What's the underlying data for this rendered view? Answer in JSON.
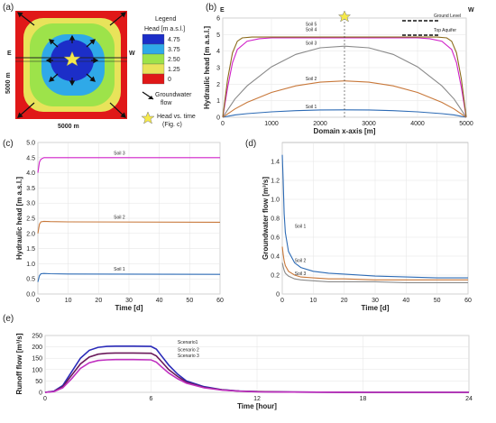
{
  "panels": {
    "a": "(a)",
    "b": "(b)",
    "c": "(c)",
    "d": "(d)",
    "e": "(e)"
  },
  "map": {
    "east": "E",
    "west": "W",
    "side_label_left": "5000 m",
    "side_label_bottom": "5000 m",
    "legend_title": "Legend",
    "head_title": "Head [m a.s.l.]",
    "head_levels": [
      "4.75",
      "3.75",
      "2.50",
      "1.25",
      "0"
    ],
    "head_colors": [
      "#1c2ec8",
      "#2fa9e8",
      "#9de34a",
      "#e8e35a",
      "#e01818"
    ],
    "gw_flow_label_1": "Groundwater",
    "gw_flow_label_2": "flow",
    "star_label_1": "Head vs. time",
    "star_label_2": "(Fig. c)"
  },
  "chart_data": [
    {
      "id": "b",
      "type": "line",
      "xlabel": "Domain x-axis [m]",
      "ylabel": "Hydraulic head [m a.s.l.]",
      "xlim": [
        0,
        5000
      ],
      "ylim": [
        0,
        6
      ],
      "xticks": [
        "0",
        "1000",
        "2000",
        "3000",
        "4000",
        "5000"
      ],
      "yticks": [
        "0",
        "1",
        "2",
        "3",
        "4",
        "5",
        "6"
      ],
      "corner_left": "E",
      "corner_right": "W",
      "ground_level_label": "Ground Level",
      "top_aquifer_label": "Top Aquifer",
      "ground_level": 5.6,
      "top_aquifer": 4.95,
      "series": [
        {
          "name": "Soil 1",
          "color": "#2d6bb5",
          "x": [
            0,
            250,
            500,
            1000,
            1500,
            2000,
            2500,
            3000,
            3500,
            4000,
            4500,
            4750,
            5000
          ],
          "values": [
            0,
            0.14,
            0.22,
            0.33,
            0.4,
            0.44,
            0.45,
            0.44,
            0.4,
            0.33,
            0.22,
            0.14,
            0
          ]
        },
        {
          "name": "Soil 2",
          "color": "#c8783a",
          "x": [
            0,
            250,
            500,
            1000,
            1500,
            2000,
            2500,
            3000,
            3500,
            4000,
            4500,
            4750,
            5000
          ],
          "values": [
            0,
            0.5,
            0.9,
            1.5,
            1.9,
            2.12,
            2.2,
            2.12,
            1.9,
            1.5,
            0.9,
            0.5,
            0
          ]
        },
        {
          "name": "Soil 3",
          "color": "#8a8a8a",
          "x": [
            0,
            250,
            500,
            1000,
            1500,
            2000,
            2500,
            3000,
            3500,
            4000,
            4500,
            4750,
            5000
          ],
          "values": [
            0,
            1.1,
            1.9,
            3.05,
            3.8,
            4.2,
            4.3,
            4.2,
            3.8,
            3.05,
            1.9,
            1.1,
            0
          ]
        },
        {
          "name": "Soil 4",
          "color": "#d020c8",
          "x": [
            0,
            100,
            200,
            300,
            500,
            750,
            1000,
            1500,
            2000,
            2500,
            3000,
            3500,
            4000,
            4250,
            4500,
            4700,
            4800,
            4900,
            5000
          ],
          "values": [
            0,
            1.8,
            3.3,
            4.1,
            4.6,
            4.75,
            4.8,
            4.8,
            4.8,
            4.8,
            4.8,
            4.8,
            4.8,
            4.75,
            4.6,
            4.1,
            3.3,
            1.8,
            0
          ]
        },
        {
          "name": "Soil 5",
          "color": "#8b6a1a",
          "x": [
            0,
            100,
            200,
            300,
            400,
            600,
            1000,
            1500,
            2000,
            2500,
            3000,
            3500,
            4000,
            4400,
            4600,
            4700,
            4800,
            4900,
            5000
          ],
          "values": [
            0,
            2.3,
            3.9,
            4.6,
            4.8,
            4.85,
            4.85,
            4.85,
            4.85,
            4.85,
            4.85,
            4.85,
            4.85,
            4.85,
            4.8,
            4.6,
            3.9,
            2.3,
            0
          ]
        }
      ],
      "marker_x": 2500
    },
    {
      "id": "c",
      "type": "line",
      "xlabel": "Time [d]",
      "ylabel": "Hydraulic head [m a.s.l.]",
      "xlim": [
        0,
        60
      ],
      "ylim": [
        0,
        5
      ],
      "xticks": [
        "0",
        "10",
        "20",
        "30",
        "40",
        "50",
        "60"
      ],
      "yticks": [
        "0.0",
        "0.5",
        "1.0",
        "1.5",
        "2.0",
        "2.5",
        "3.0",
        "3.5",
        "4.0",
        "4.5",
        "5.0"
      ],
      "series": [
        {
          "name": "Soil 1",
          "color": "#2d6bb5",
          "x": [
            0,
            0.5,
            1,
            2,
            4,
            10,
            60
          ],
          "values": [
            0.4,
            0.6,
            0.67,
            0.68,
            0.67,
            0.66,
            0.65
          ]
        },
        {
          "name": "Soil 2",
          "color": "#c8783a",
          "x": [
            0,
            0.5,
            1,
            2,
            4,
            10,
            60
          ],
          "values": [
            2.0,
            2.3,
            2.38,
            2.4,
            2.39,
            2.38,
            2.37
          ]
        },
        {
          "name": "Soil 3",
          "color": "#d020c8",
          "x": [
            0,
            0.5,
            1,
            2,
            3,
            10,
            60
          ],
          "values": [
            4.0,
            4.35,
            4.45,
            4.5,
            4.5,
            4.5,
            4.5
          ]
        }
      ]
    },
    {
      "id": "d",
      "type": "line",
      "xlabel": "Time [d]",
      "ylabel": "Groundwater flow [m³/s]",
      "xlim": [
        0,
        60
      ],
      "ylim": [
        0,
        1.6
      ],
      "xticks": [
        "0",
        "10",
        "20",
        "30",
        "40",
        "50",
        "60"
      ],
      "yticks": [
        "0",
        "0.2",
        "0.4",
        "0.6",
        "0.8",
        "1.0",
        "1.2",
        "1.4"
      ],
      "series": [
        {
          "name": "Soil 1",
          "color": "#2d6bb5",
          "x": [
            0,
            0.3,
            0.6,
            1,
            2,
            4,
            6,
            10,
            15,
            20,
            30,
            40,
            50,
            60
          ],
          "values": [
            1.47,
            1.2,
            0.85,
            0.65,
            0.45,
            0.33,
            0.28,
            0.24,
            0.22,
            0.21,
            0.19,
            0.18,
            0.17,
            0.17
          ]
        },
        {
          "name": "Soil 2",
          "color": "#c8783a",
          "x": [
            0,
            0.3,
            0.6,
            1,
            2,
            4,
            6,
            10,
            15,
            20,
            30,
            40,
            50,
            60
          ],
          "values": [
            0.5,
            0.42,
            0.35,
            0.3,
            0.24,
            0.2,
            0.18,
            0.17,
            0.16,
            0.16,
            0.15,
            0.15,
            0.15,
            0.15
          ]
        },
        {
          "name": "Soil 3",
          "color": "#8a8a8a",
          "x": [
            0,
            0.3,
            0.6,
            1,
            2,
            4,
            6,
            10,
            15,
            20,
            30,
            40,
            50,
            60
          ],
          "values": [
            0.33,
            0.29,
            0.25,
            0.22,
            0.19,
            0.16,
            0.15,
            0.14,
            0.13,
            0.13,
            0.13,
            0.12,
            0.12,
            0.12
          ]
        }
      ]
    },
    {
      "id": "e",
      "type": "line",
      "xlabel": "Time [hour]",
      "ylabel": "Runoff flow [m³/s]",
      "xlim": [
        0,
        24
      ],
      "ylim": [
        0,
        250
      ],
      "xticks": [
        "0",
        "6",
        "12",
        "18",
        "24"
      ],
      "yticks": [
        "0",
        "50",
        "100",
        "150",
        "200",
        "250"
      ],
      "series": [
        {
          "name": "Scenario1",
          "color": "#2a2ab8",
          "x": [
            0,
            0.5,
            1,
            1.5,
            2,
            2.5,
            3,
            3.5,
            4,
            5,
            6,
            6.3,
            6.6,
            7,
            7.5,
            8,
            9,
            10,
            11,
            12,
            14,
            18,
            24
          ],
          "values": [
            0,
            5,
            30,
            90,
            150,
            185,
            198,
            202,
            203,
            203,
            202,
            190,
            160,
            120,
            80,
            50,
            25,
            12,
            6,
            3,
            1,
            0,
            0
          ]
        },
        {
          "name": "Scenario 2",
          "color": "#6a1a5a",
          "x": [
            0,
            0.5,
            1,
            1.5,
            2,
            2.5,
            3,
            3.5,
            4,
            5,
            6,
            6.3,
            6.6,
            7,
            7.5,
            8,
            9,
            10,
            11,
            12,
            14,
            18,
            24
          ],
          "values": [
            0,
            4,
            25,
            75,
            125,
            155,
            168,
            172,
            173,
            173,
            172,
            160,
            135,
            100,
            70,
            45,
            22,
            11,
            5,
            3,
            1,
            0,
            0
          ]
        },
        {
          "name": "Scenario 3",
          "color": "#c030c0",
          "x": [
            0,
            0.5,
            1,
            1.5,
            2,
            2.5,
            3,
            3.5,
            4,
            5,
            6,
            6.3,
            6.6,
            7,
            7.5,
            8,
            9,
            10,
            11,
            12,
            14,
            18,
            24
          ],
          "values": [
            0,
            3,
            20,
            60,
            105,
            130,
            140,
            143,
            144,
            144,
            143,
            133,
            112,
            85,
            60,
            40,
            20,
            10,
            5,
            2,
            1,
            0,
            0
          ]
        }
      ]
    }
  ]
}
